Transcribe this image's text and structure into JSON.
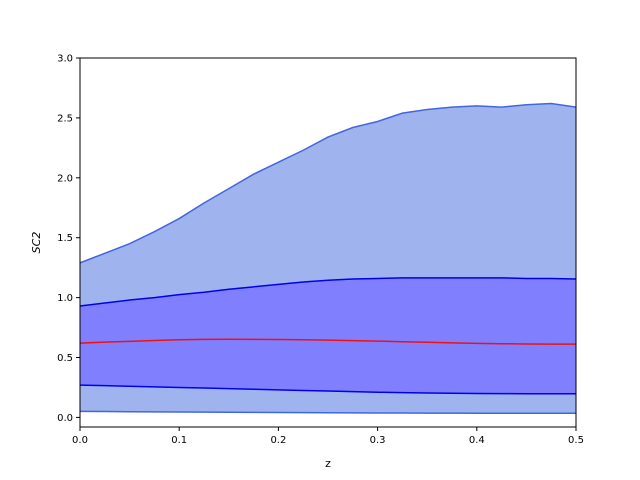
{
  "chart_data": {
    "type": "area",
    "title": "",
    "xlabel": "z",
    "ylabel": "SC2",
    "xlim": [
      0,
      0.5
    ],
    "ylim": [
      -0.08,
      3.0
    ],
    "x_ticks": [
      0.0,
      0.1,
      0.2,
      0.3,
      0.4,
      0.5
    ],
    "x_tick_labels": [
      "0.0",
      "0.1",
      "0.2",
      "0.3",
      "0.4",
      "0.5"
    ],
    "y_ticks": [
      0.0,
      0.5,
      1.0,
      1.5,
      2.0,
      2.5,
      3.0
    ],
    "y_tick_labels": [
      "0.0",
      "0.5",
      "1.0",
      "1.5",
      "2.0",
      "2.5",
      "3.0"
    ],
    "grid": false,
    "x": [
      0.0,
      0.025,
      0.05,
      0.075,
      0.1,
      0.125,
      0.15,
      0.175,
      0.2,
      0.225,
      0.25,
      0.275,
      0.3,
      0.325,
      0.35,
      0.375,
      0.4,
      0.425,
      0.45,
      0.475,
      0.5
    ],
    "bands": [
      {
        "color": "#9fb4ee",
        "edge_color": "#4466dd",
        "lower": [
          0.05,
          0.049,
          0.047,
          0.046,
          0.045,
          0.044,
          0.043,
          0.042,
          0.041,
          0.04,
          0.039,
          0.038,
          0.037,
          0.037,
          0.036,
          0.036,
          0.035,
          0.035,
          0.035,
          0.035,
          0.035
        ],
        "upper": [
          1.29,
          1.37,
          1.45,
          1.55,
          1.66,
          1.79,
          1.91,
          2.03,
          2.13,
          2.23,
          2.34,
          2.42,
          2.47,
          2.54,
          2.57,
          2.59,
          2.6,
          2.59,
          2.61,
          2.62,
          2.59
        ]
      },
      {
        "color": "#8080ff",
        "edge_color": "#0000ee",
        "lower": [
          0.27,
          0.265,
          0.26,
          0.255,
          0.25,
          0.245,
          0.24,
          0.235,
          0.23,
          0.225,
          0.22,
          0.215,
          0.21,
          0.207,
          0.204,
          0.202,
          0.2,
          0.199,
          0.198,
          0.198,
          0.198
        ],
        "upper": [
          0.93,
          0.955,
          0.98,
          1.0,
          1.025,
          1.045,
          1.07,
          1.09,
          1.11,
          1.13,
          1.145,
          1.155,
          1.16,
          1.165,
          1.165,
          1.165,
          1.165,
          1.165,
          1.16,
          1.16,
          1.155
        ]
      }
    ],
    "line": {
      "color": "#ee1111",
      "y": [
        0.62,
        0.628,
        0.635,
        0.642,
        0.648,
        0.651,
        0.652,
        0.651,
        0.65,
        0.648,
        0.645,
        0.641,
        0.637,
        0.632,
        0.627,
        0.622,
        0.618,
        0.615,
        0.613,
        0.612,
        0.612
      ]
    }
  }
}
